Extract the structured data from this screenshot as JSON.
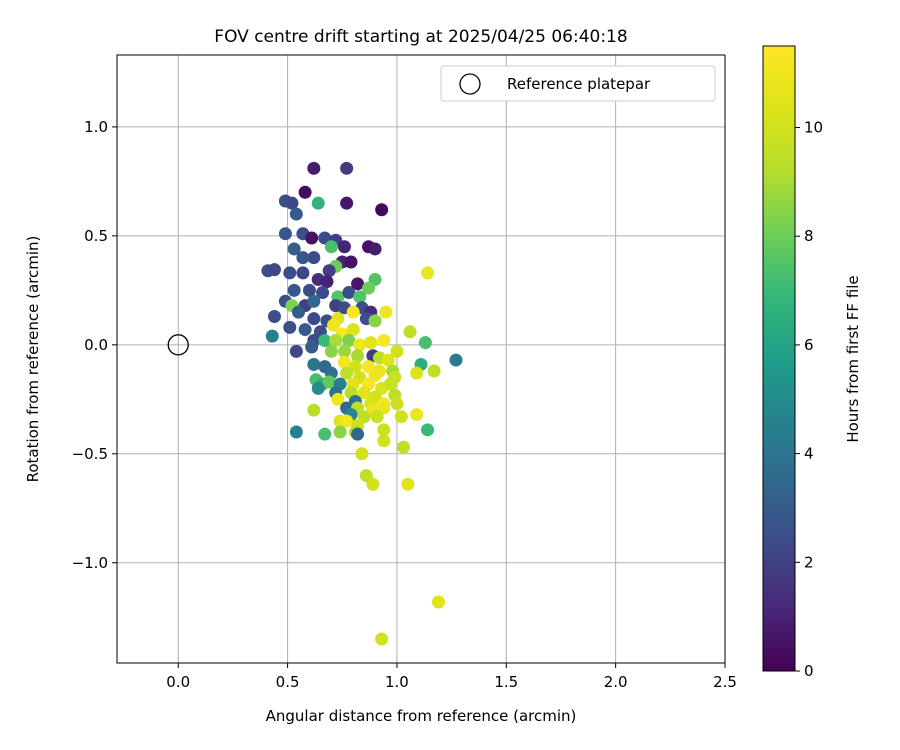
{
  "chart_data": {
    "type": "scatter",
    "title": "FOV centre drift starting at 2025/04/25 06:40:18",
    "xlabel": "Angular distance from reference (arcmin)",
    "ylabel": "Rotation from reference (arcmin)",
    "xlim": [
      -0.28,
      2.5
    ],
    "ylim": [
      -1.46,
      1.33
    ],
    "xticks": [
      "0.0",
      "0.5",
      "1.0",
      "1.5",
      "2.0",
      "2.5"
    ],
    "yticks": [
      "1.0",
      "0.5",
      "0.0",
      "−0.5",
      "−1.0"
    ],
    "grid": true,
    "legend": {
      "position": "top-right",
      "entries": [
        {
          "label": "Reference platepar",
          "marker": "open-circle"
        }
      ]
    },
    "reference_point": {
      "x": 0.0,
      "y": 0.0
    },
    "colorbar": {
      "label": "Hours from first FF file",
      "colormap": "viridis",
      "range": [
        0,
        11.5
      ],
      "ticks": [
        "0",
        "2",
        "4",
        "6",
        "8",
        "10"
      ]
    },
    "points": [
      {
        "x": 0.62,
        "y": 0.81,
        "h": 0.8
      },
      {
        "x": 0.77,
        "y": 0.81,
        "h": 1.8
      },
      {
        "x": 0.58,
        "y": 0.7,
        "h": 0.3
      },
      {
        "x": 0.77,
        "y": 0.65,
        "h": 0.6
      },
      {
        "x": 0.93,
        "y": 0.62,
        "h": 0.2
      },
      {
        "x": 0.49,
        "y": 0.66,
        "h": 2.5
      },
      {
        "x": 0.52,
        "y": 0.65,
        "h": 2.3
      },
      {
        "x": 0.64,
        "y": 0.65,
        "h": 6.8
      },
      {
        "x": 0.54,
        "y": 0.6,
        "h": 3.0
      },
      {
        "x": 0.49,
        "y": 0.51,
        "h": 2.8
      },
      {
        "x": 0.57,
        "y": 0.51,
        "h": 2.5
      },
      {
        "x": 0.61,
        "y": 0.49,
        "h": 0.5
      },
      {
        "x": 0.67,
        "y": 0.49,
        "h": 2.5
      },
      {
        "x": 0.72,
        "y": 0.48,
        "h": 2.0
      },
      {
        "x": 0.76,
        "y": 0.45,
        "h": 1.0
      },
      {
        "x": 0.87,
        "y": 0.45,
        "h": 0.5
      },
      {
        "x": 0.9,
        "y": 0.44,
        "h": 0.8
      },
      {
        "x": 0.53,
        "y": 0.44,
        "h": 3.0
      },
      {
        "x": 0.7,
        "y": 0.45,
        "h": 7.3
      },
      {
        "x": 0.62,
        "y": 0.4,
        "h": 2.5
      },
      {
        "x": 0.57,
        "y": 0.4,
        "h": 2.8
      },
      {
        "x": 0.75,
        "y": 0.38,
        "h": 1.0
      },
      {
        "x": 0.79,
        "y": 0.38,
        "h": 0.5
      },
      {
        "x": 0.72,
        "y": 0.36,
        "h": 8.0
      },
      {
        "x": 0.69,
        "y": 0.34,
        "h": 2.0
      },
      {
        "x": 0.41,
        "y": 0.34,
        "h": 2.5
      },
      {
        "x": 0.44,
        "y": 0.345,
        "h": 2.3
      },
      {
        "x": 0.51,
        "y": 0.33,
        "h": 2.5
      },
      {
        "x": 0.57,
        "y": 0.33,
        "h": 2.2
      },
      {
        "x": 0.64,
        "y": 0.3,
        "h": 1.3
      },
      {
        "x": 0.68,
        "y": 0.29,
        "h": 1.0
      },
      {
        "x": 0.82,
        "y": 0.28,
        "h": 0.6
      },
      {
        "x": 0.9,
        "y": 0.3,
        "h": 7.5
      },
      {
        "x": 0.87,
        "y": 0.26,
        "h": 8.0
      },
      {
        "x": 0.53,
        "y": 0.25,
        "h": 2.8
      },
      {
        "x": 0.6,
        "y": 0.25,
        "h": 2.5
      },
      {
        "x": 0.66,
        "y": 0.24,
        "h": 2.3
      },
      {
        "x": 0.73,
        "y": 0.22,
        "h": 7.5
      },
      {
        "x": 0.78,
        "y": 0.24,
        "h": 2.5
      },
      {
        "x": 0.83,
        "y": 0.22,
        "h": 7.5
      },
      {
        "x": 0.49,
        "y": 0.2,
        "h": 2.5
      },
      {
        "x": 0.52,
        "y": 0.18,
        "h": 8.3
      },
      {
        "x": 0.58,
        "y": 0.18,
        "h": 2.0
      },
      {
        "x": 0.62,
        "y": 0.2,
        "h": 3.5
      },
      {
        "x": 0.72,
        "y": 0.18,
        "h": 2.0
      },
      {
        "x": 0.76,
        "y": 0.17,
        "h": 2.5
      },
      {
        "x": 0.84,
        "y": 0.17,
        "h": 2.5
      },
      {
        "x": 0.88,
        "y": 0.15,
        "h": 1.3
      },
      {
        "x": 0.95,
        "y": 0.15,
        "h": 11.0
      },
      {
        "x": 1.14,
        "y": 0.33,
        "h": 10.8
      },
      {
        "x": 0.44,
        "y": 0.13,
        "h": 2.5
      },
      {
        "x": 0.55,
        "y": 0.15,
        "h": 3.0
      },
      {
        "x": 0.62,
        "y": 0.12,
        "h": 2.3
      },
      {
        "x": 0.68,
        "y": 0.11,
        "h": 2.5
      },
      {
        "x": 0.73,
        "y": 0.12,
        "h": 10.5
      },
      {
        "x": 0.8,
        "y": 0.15,
        "h": 11.3
      },
      {
        "x": 0.86,
        "y": 0.12,
        "h": 2.5
      },
      {
        "x": 0.9,
        "y": 0.11,
        "h": 8.5
      },
      {
        "x": 0.51,
        "y": 0.08,
        "h": 2.5
      },
      {
        "x": 0.58,
        "y": 0.07,
        "h": 3.0
      },
      {
        "x": 0.65,
        "y": 0.06,
        "h": 2.5
      },
      {
        "x": 0.71,
        "y": 0.09,
        "h": 11.0
      },
      {
        "x": 0.75,
        "y": 0.05,
        "h": 11.2
      },
      {
        "x": 0.8,
        "y": 0.07,
        "h": 10.3
      },
      {
        "x": 1.06,
        "y": 0.06,
        "h": 9.5
      },
      {
        "x": 0.43,
        "y": 0.04,
        "h": 4.5
      },
      {
        "x": 0.62,
        "y": 0.02,
        "h": 2.3
      },
      {
        "x": 0.67,
        "y": 0.02,
        "h": 7.0
      },
      {
        "x": 0.72,
        "y": 0.02,
        "h": 9.0
      },
      {
        "x": 0.78,
        "y": 0.02,
        "h": 8.3
      },
      {
        "x": 0.83,
        "y": 0.0,
        "h": 11.0
      },
      {
        "x": 0.88,
        "y": 0.01,
        "h": 10.5
      },
      {
        "x": 0.94,
        "y": 0.02,
        "h": 11.3
      },
      {
        "x": 1.13,
        "y": 0.01,
        "h": 7.3
      },
      {
        "x": 0.54,
        "y": -0.03,
        "h": 2.3
      },
      {
        "x": 0.61,
        "y": -0.01,
        "h": 3.0
      },
      {
        "x": 0.7,
        "y": -0.03,
        "h": 8.5
      },
      {
        "x": 0.76,
        "y": -0.03,
        "h": 8.8
      },
      {
        "x": 0.82,
        "y": -0.05,
        "h": 9.0
      },
      {
        "x": 0.89,
        "y": -0.05,
        "h": 1.8
      },
      {
        "x": 0.92,
        "y": -0.06,
        "h": 9.5
      },
      {
        "x": 1.0,
        "y": -0.03,
        "h": 10.0
      },
      {
        "x": 0.96,
        "y": -0.07,
        "h": 10.5
      },
      {
        "x": 1.27,
        "y": -0.07,
        "h": 4.3
      },
      {
        "x": 0.62,
        "y": -0.09,
        "h": 4.0
      },
      {
        "x": 0.67,
        "y": -0.1,
        "h": 3.5
      },
      {
        "x": 0.76,
        "y": -0.08,
        "h": 11.2
      },
      {
        "x": 0.81,
        "y": -0.1,
        "h": 10.0
      },
      {
        "x": 0.87,
        "y": -0.1,
        "h": 11.3
      },
      {
        "x": 0.92,
        "y": -0.12,
        "h": 10.8
      },
      {
        "x": 0.98,
        "y": -0.12,
        "h": 9.0
      },
      {
        "x": 1.11,
        "y": -0.09,
        "h": 6.5
      },
      {
        "x": 0.7,
        "y": -0.13,
        "h": 3.8
      },
      {
        "x": 0.77,
        "y": -0.13,
        "h": 9.5
      },
      {
        "x": 0.83,
        "y": -0.15,
        "h": 10.0
      },
      {
        "x": 0.9,
        "y": -0.14,
        "h": 11.0
      },
      {
        "x": 0.99,
        "y": -0.15,
        "h": 9.8
      },
      {
        "x": 1.09,
        "y": -0.13,
        "h": 10.3
      },
      {
        "x": 1.17,
        "y": -0.12,
        "h": 9.5
      },
      {
        "x": 0.63,
        "y": -0.16,
        "h": 7.2
      },
      {
        "x": 0.66,
        "y": -0.18,
        "h": 6.5
      },
      {
        "x": 0.69,
        "y": -0.17,
        "h": 7.8
      },
      {
        "x": 0.74,
        "y": -0.18,
        "h": 4.5
      },
      {
        "x": 0.8,
        "y": -0.18,
        "h": 10.5
      },
      {
        "x": 0.87,
        "y": -0.18,
        "h": 11.3
      },
      {
        "x": 0.93,
        "y": -0.2,
        "h": 10.3
      },
      {
        "x": 0.97,
        "y": -0.18,
        "h": 9.8
      },
      {
        "x": 0.64,
        "y": -0.2,
        "h": 5.0
      },
      {
        "x": 0.72,
        "y": -0.22,
        "h": 4.0
      },
      {
        "x": 0.79,
        "y": -0.22,
        "h": 9.3
      },
      {
        "x": 0.85,
        "y": -0.22,
        "h": 10.5
      },
      {
        "x": 0.9,
        "y": -0.24,
        "h": 10.0
      },
      {
        "x": 0.99,
        "y": -0.23,
        "h": 9.5
      },
      {
        "x": 0.73,
        "y": -0.25,
        "h": 11.0
      },
      {
        "x": 0.81,
        "y": -0.26,
        "h": 3.8
      },
      {
        "x": 0.88,
        "y": -0.27,
        "h": 10.3
      },
      {
        "x": 0.94,
        "y": -0.27,
        "h": 11.3
      },
      {
        "x": 1.0,
        "y": -0.27,
        "h": 9.8
      },
      {
        "x": 0.77,
        "y": -0.29,
        "h": 3.5
      },
      {
        "x": 0.82,
        "y": -0.29,
        "h": 9.5
      },
      {
        "x": 0.89,
        "y": -0.3,
        "h": 11.0
      },
      {
        "x": 0.94,
        "y": -0.29,
        "h": 10.8
      },
      {
        "x": 0.62,
        "y": -0.3,
        "h": 9.3
      },
      {
        "x": 0.79,
        "y": -0.32,
        "h": 4.8
      },
      {
        "x": 0.85,
        "y": -0.33,
        "h": 9.5
      },
      {
        "x": 0.91,
        "y": -0.33,
        "h": 9.8
      },
      {
        "x": 1.02,
        "y": -0.33,
        "h": 10.0
      },
      {
        "x": 1.09,
        "y": -0.32,
        "h": 10.8
      },
      {
        "x": 0.74,
        "y": -0.35,
        "h": 10.5
      },
      {
        "x": 0.77,
        "y": -0.35,
        "h": 11.2
      },
      {
        "x": 0.82,
        "y": -0.37,
        "h": 10.0
      },
      {
        "x": 0.54,
        "y": -0.4,
        "h": 4.5
      },
      {
        "x": 0.67,
        "y": -0.41,
        "h": 7.3
      },
      {
        "x": 0.74,
        "y": -0.4,
        "h": 8.5
      },
      {
        "x": 0.81,
        "y": -0.4,
        "h": 9.3
      },
      {
        "x": 0.82,
        "y": -0.41,
        "h": 3.5
      },
      {
        "x": 0.94,
        "y": -0.39,
        "h": 9.8
      },
      {
        "x": 1.14,
        "y": -0.39,
        "h": 7.0
      },
      {
        "x": 0.94,
        "y": -0.44,
        "h": 10.0
      },
      {
        "x": 1.03,
        "y": -0.47,
        "h": 9.5
      },
      {
        "x": 0.84,
        "y": -0.5,
        "h": 10.0
      },
      {
        "x": 0.86,
        "y": -0.6,
        "h": 9.5
      },
      {
        "x": 0.89,
        "y": -0.64,
        "h": 10.0
      },
      {
        "x": 1.05,
        "y": -0.64,
        "h": 10.5
      },
      {
        "x": 1.19,
        "y": -1.18,
        "h": 10.5
      },
      {
        "x": 0.93,
        "y": -1.35,
        "h": 10.0
      }
    ]
  }
}
